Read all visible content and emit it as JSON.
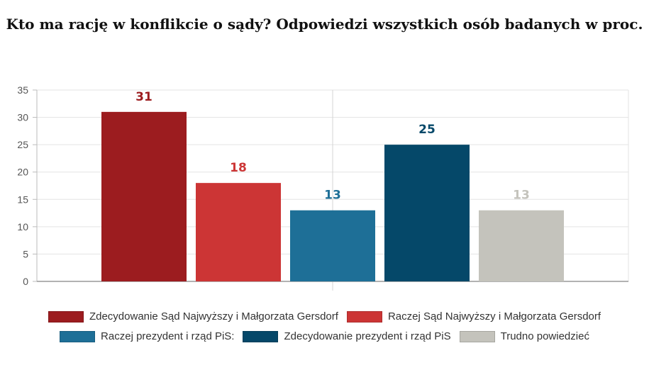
{
  "title": "Kto ma rację w konflikcie o sądy? Odpowiedzi wszystkich osób badanych w proc.",
  "chart_data": {
    "type": "bar",
    "categories": [
      "Zdecydowanie Sąd Najwyższy i Małgorzata Gersdorf",
      "Raczej Sąd Najwyższy i Małgorzata Gersdorf",
      "Raczej prezydent i rząd PiS:",
      "Zdecydowanie prezydent i rząd PiS",
      "Trudno powiedzieć"
    ],
    "values": [
      31,
      18,
      13,
      25,
      13
    ],
    "colors": [
      "#9c1c1f",
      "#cc3535",
      "#1e6f97",
      "#054869",
      "#c4c3bc"
    ],
    "label_colors": [
      "#9c1c1f",
      "#cc3535",
      "#1e6f97",
      "#054869",
      "#c4c3bc"
    ],
    "ylim": [
      0,
      35
    ],
    "yticks": [
      0,
      5,
      10,
      15,
      20,
      25,
      30,
      35
    ],
    "grid": true,
    "legend_position": "bottom"
  },
  "legend": {
    "rows": [
      [
        {
          "label": "Zdecydowanie Sąd Najwyższy i Małgorzata Gersdorf",
          "color": "#9c1c1f"
        },
        {
          "label": "Raczej Sąd Najwyższy i Małgorzata Gersdorf",
          "color": "#cc3535"
        }
      ],
      [
        {
          "label": "Raczej prezydent i rząd PiS:",
          "color": "#1e6f97"
        },
        {
          "label": "Zdecydowanie prezydent i rząd PiS",
          "color": "#054869"
        },
        {
          "label": "Trudno powiedzieć",
          "color": "#c4c3bc"
        }
      ]
    ]
  }
}
